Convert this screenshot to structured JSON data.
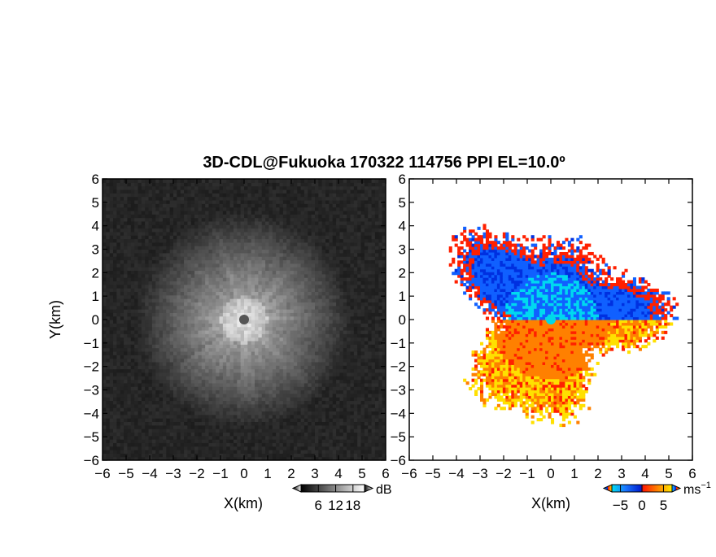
{
  "figure": {
    "title": "3D-CDL@Fukuoka 170322 114756 PPI EL=10.0º"
  },
  "chart_data": [
    {
      "type": "heatmap",
      "name": "intensity-panel",
      "xlabel": "X(km)",
      "ylabel": "Y(km)",
      "xlim": [
        -6,
        6
      ],
      "ylim": [
        -6,
        6
      ],
      "x_ticks": [
        -6,
        -5,
        -4,
        -3,
        -2,
        -1,
        0,
        1,
        2,
        3,
        4,
        5,
        6
      ],
      "y_ticks": [
        -6,
        -5,
        -4,
        -3,
        -2,
        -1,
        0,
        1,
        2,
        3,
        4,
        5,
        6
      ],
      "colormap": "grayscale",
      "colorbar": {
        "unit": "dB",
        "ticks": [
          6,
          12,
          18
        ],
        "range": [
          0,
          22
        ],
        "colors": [
          "#000000",
          "#ffffff"
        ]
      }
    },
    {
      "type": "heatmap",
      "name": "doppler-velocity-panel",
      "xlabel": "X(km)",
      "ylabel": "",
      "xlim": [
        -6,
        6
      ],
      "ylim": [
        -6,
        6
      ],
      "x_ticks": [
        -6,
        -5,
        -4,
        -3,
        -2,
        -1,
        0,
        1,
        2,
        3,
        4,
        5,
        6
      ],
      "y_ticks": [
        -6,
        -5,
        -4,
        -3,
        -2,
        -1,
        0,
        1,
        2,
        3,
        4,
        5,
        6
      ],
      "colormap": "blue-red-yellow diverging",
      "colorbar": {
        "unit": "ms",
        "unit_superscript": "−1",
        "ticks": [
          "−5",
          "0",
          "5"
        ],
        "tick_values": [
          -5,
          0,
          5
        ],
        "range": [
          -7,
          7
        ],
        "colors": [
          "#00d8f0",
          "#1060ff",
          "#0030e0",
          "#ff2000",
          "#ff8000",
          "#ffe000"
        ]
      }
    }
  ]
}
